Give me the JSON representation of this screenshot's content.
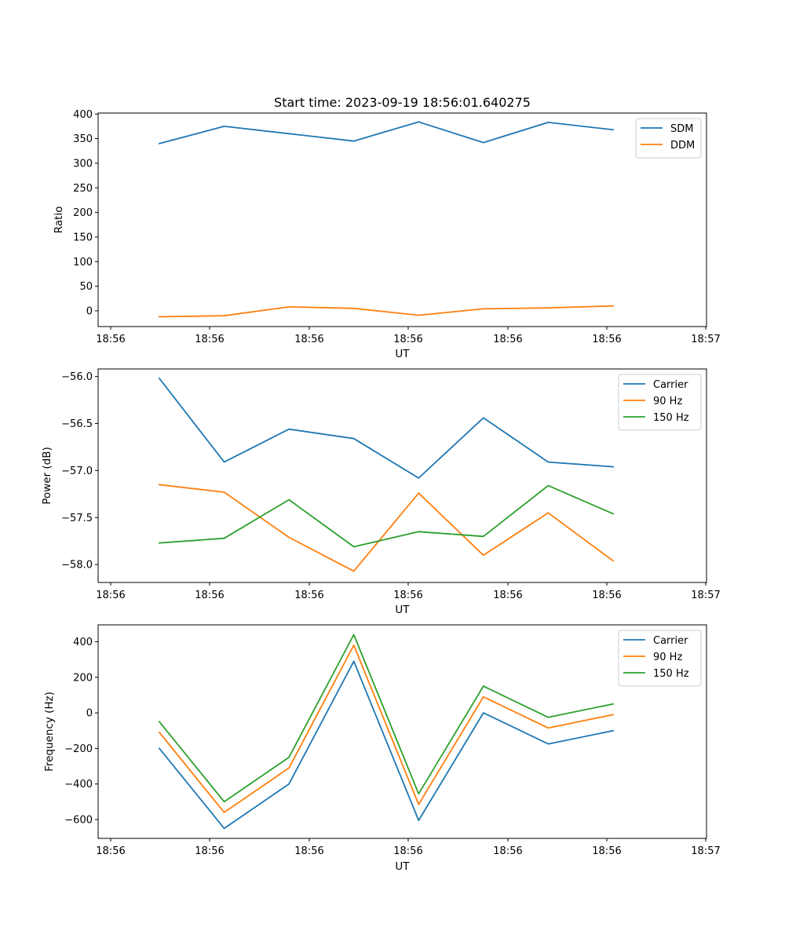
{
  "chart_data": [
    {
      "type": "line",
      "title": "Start time: 2023-09-19 18:56:01.640275",
      "xlabel": "UT",
      "ylabel": "Ratio",
      "x_tick_labels": [
        "18:56",
        "18:56",
        "18:56",
        "18:56",
        "18:56",
        "18:56",
        "18:56"
      ],
      "x_last_tick_label": "18:57",
      "y_ticks": [
        0,
        50,
        100,
        150,
        200,
        250,
        300,
        350,
        400
      ],
      "ylim": [
        -32,
        402
      ],
      "legend_position": "upper right",
      "series": [
        {
          "name": "SDM",
          "color": "#1f77b4",
          "values": [
            340,
            375,
            360,
            345,
            384,
            342,
            383,
            368
          ]
        },
        {
          "name": "DDM",
          "color": "#ff7f0e",
          "values": [
            -12,
            -10,
            8,
            5,
            -9,
            4,
            6,
            10
          ]
        }
      ]
    },
    {
      "type": "line",
      "title": "",
      "xlabel": "UT",
      "ylabel": "Power (dB)",
      "x_tick_labels": [
        "18:56",
        "18:56",
        "18:56",
        "18:56",
        "18:56",
        "18:56",
        "18:56"
      ],
      "x_last_tick_label": "18:57",
      "y_ticks": [
        -58.0,
        -57.5,
        -57.0,
        -56.5,
        -56.0
      ],
      "y_tick_labels": [
        "−58.0",
        "−57.5",
        "−57.0",
        "−56.5",
        "−56.0"
      ],
      "ylim": [
        -58.19,
        -55.92
      ],
      "legend_position": "upper right",
      "series": [
        {
          "name": "Carrier",
          "color": "#1f77b4",
          "values": [
            -56.02,
            -56.91,
            -56.56,
            -56.66,
            -57.08,
            -56.44,
            -56.91,
            -56.96
          ]
        },
        {
          "name": "90 Hz",
          "color": "#ff7f0e",
          "values": [
            -57.15,
            -57.23,
            -57.71,
            -58.07,
            -57.24,
            -57.9,
            -57.45,
            -57.96
          ]
        },
        {
          "name": "150 Hz",
          "color": "#2ca02c",
          "values": [
            -57.77,
            -57.72,
            -57.31,
            -57.81,
            -57.65,
            -57.7,
            -57.16,
            -57.46
          ]
        }
      ]
    },
    {
      "type": "line",
      "title": "",
      "xlabel": "UT",
      "ylabel": "Frequency (Hz)",
      "x_tick_labels": [
        "18:56",
        "18:56",
        "18:56",
        "18:56",
        "18:56",
        "18:56",
        "18:56"
      ],
      "x_last_tick_label": "18:57",
      "y_ticks": [
        -600,
        -400,
        -200,
        0,
        200,
        400
      ],
      "y_tick_labels": [
        "−600",
        "−400",
        "−200",
        "0",
        "200",
        "400"
      ],
      "ylim": [
        -706,
        495
      ],
      "legend_position": "upper right",
      "series": [
        {
          "name": "Carrier",
          "color": "#1f77b4",
          "values": [
            -200,
            -650,
            -400,
            290,
            -605,
            0,
            -175,
            -100
          ]
        },
        {
          "name": "90 Hz",
          "color": "#ff7f0e",
          "values": [
            -110,
            -560,
            -310,
            380,
            -515,
            90,
            -85,
            -10
          ]
        },
        {
          "name": "150 Hz",
          "color": "#2ca02c",
          "values": [
            -50,
            -500,
            -250,
            440,
            -455,
            150,
            -25,
            50
          ]
        }
      ]
    }
  ]
}
